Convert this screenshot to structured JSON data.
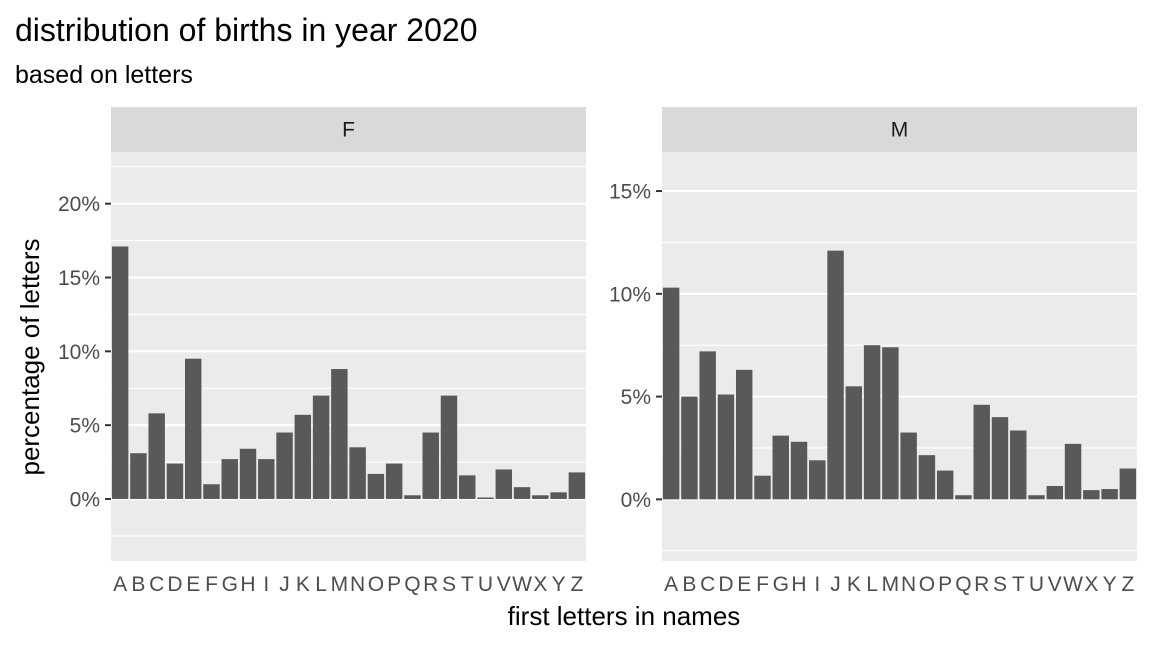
{
  "chart_data": {
    "type": "bar",
    "title": "distribution of births in year 2020",
    "subtitle": "based on letters",
    "xlabel": "first letters in names",
    "ylabel": "percentage of letters",
    "categories": [
      "A",
      "B",
      "C",
      "D",
      "E",
      "F",
      "G",
      "H",
      "I",
      "J",
      "K",
      "L",
      "M",
      "N",
      "O",
      "P",
      "Q",
      "R",
      "S",
      "T",
      "U",
      "V",
      "W",
      "X",
      "Y",
      "Z"
    ],
    "grid": true,
    "panels": [
      {
        "strip": "F",
        "ylim": [
          -4.2,
          23.5
        ],
        "yticks": [
          0,
          5,
          10,
          15,
          20
        ],
        "ytick_labels": [
          "0%",
          "5%",
          "10%",
          "15%",
          "20%"
        ],
        "values": [
          17.1,
          3.1,
          5.8,
          2.4,
          9.5,
          1.0,
          2.7,
          3.4,
          2.7,
          4.5,
          5.7,
          7.0,
          8.8,
          3.5,
          1.7,
          2.4,
          0.25,
          4.5,
          7.0,
          1.6,
          0.1,
          2.0,
          0.8,
          0.25,
          0.45,
          1.8
        ]
      },
      {
        "strip": "M",
        "ylim": [
          -3.0,
          16.9
        ],
        "yticks": [
          0,
          5,
          10,
          15
        ],
        "ytick_labels": [
          "0%",
          "5%",
          "10%",
          "15%"
        ],
        "values": [
          10.3,
          5.0,
          7.2,
          5.1,
          6.3,
          1.15,
          3.1,
          2.8,
          1.9,
          12.1,
          5.5,
          7.5,
          7.4,
          3.25,
          2.15,
          1.4,
          0.2,
          4.6,
          4.0,
          3.35,
          0.2,
          0.65,
          2.7,
          0.45,
          0.5,
          1.5
        ]
      }
    ]
  }
}
